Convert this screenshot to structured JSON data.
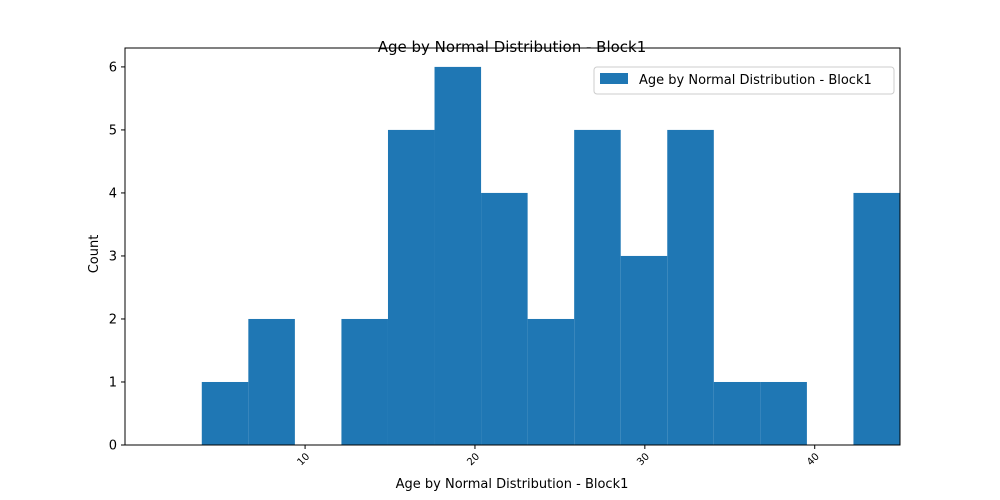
{
  "chart_data": {
    "type": "bar",
    "title": "Age by Normal Distribution - Block1",
    "xlabel": "Age by Normal Distribution - Block1",
    "ylabel": "Count",
    "bin_edges": [
      3.92,
      6.66,
      9.4,
      12.14,
      14.88,
      17.62,
      20.36,
      23.1,
      25.84,
      28.58,
      31.32,
      34.06,
      36.8,
      39.54,
      42.28,
      45.02
    ],
    "values": [
      1,
      2,
      0,
      2,
      5,
      6,
      4,
      2,
      5,
      3,
      5,
      1,
      1,
      0,
      4
    ],
    "xlim": [
      -0.6,
      45.02
    ],
    "ylim": [
      0,
      6.3
    ],
    "x_ticks": [
      {
        "value": 10,
        "label": "10"
      },
      {
        "value": 20,
        "label": "20"
      },
      {
        "value": 30,
        "label": "30"
      },
      {
        "value": 40,
        "label": "40"
      }
    ],
    "y_ticks": [
      {
        "value": 0,
        "label": "0"
      },
      {
        "value": 1,
        "label": "1"
      },
      {
        "value": 2,
        "label": "2"
      },
      {
        "value": 3,
        "label": "3"
      },
      {
        "value": 4,
        "label": "4"
      },
      {
        "value": 5,
        "label": "5"
      },
      {
        "value": 6,
        "label": "6"
      }
    ],
    "legend": {
      "position": "top-right",
      "entries": [
        {
          "label": "Age by Normal Distribution - Block1",
          "color": "#1f77b4"
        }
      ]
    },
    "bar_color": "#1f77b4",
    "grid": false
  }
}
